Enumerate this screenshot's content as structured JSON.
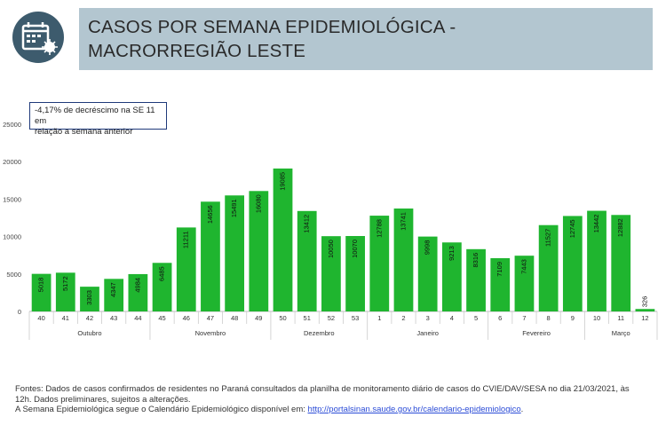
{
  "header": {
    "icon": "calendar-virus-icon",
    "title_line1": "CASOS POR SEMANA EPIDEMIOLÓGICA -",
    "title_line2": "MACRORREGIÃO LESTE",
    "accent_color": "#b3c6d0",
    "icon_color": "#3d5b6d"
  },
  "annotation": {
    "line1": "-4,17% de decréscimo na SE 11 em",
    "line2": "relação a semana anterior"
  },
  "chart_data": {
    "type": "bar",
    "bar_color": "#1fb52f",
    "categories": [
      "40",
      "41",
      "42",
      "43",
      "44",
      "45",
      "46",
      "47",
      "48",
      "49",
      "50",
      "51",
      "52",
      "53",
      "1",
      "2",
      "3",
      "4",
      "5",
      "6",
      "7",
      "8",
      "9",
      "10",
      "11",
      "12"
    ],
    "values": [
      5018,
      5172,
      3303,
      4347,
      4984,
      6485,
      11211,
      14656,
      15491,
      16080,
      19085,
      13412,
      10050,
      10070,
      12788,
      13741,
      9998,
      9213,
      8316,
      7109,
      7443,
      11527,
      12745,
      13442,
      12882,
      326
    ],
    "month_groups": [
      {
        "label": "Outubro",
        "start": 0,
        "end": 4
      },
      {
        "label": "Novembro",
        "start": 5,
        "end": 9
      },
      {
        "label": "Dezembro",
        "start": 10,
        "end": 13
      },
      {
        "label": "Janeiro",
        "start": 14,
        "end": 18
      },
      {
        "label": "Fevereiro",
        "start": 19,
        "end": 22
      },
      {
        "label": "Março",
        "start": 23,
        "end": 25
      }
    ],
    "yticks": [
      0,
      5000,
      10000,
      15000,
      20000,
      25000
    ],
    "ylim": [
      0,
      25000
    ],
    "grid": false
  },
  "footer": {
    "line1": "Fontes: Dados de casos confirmados de residentes no Paraná consultados da planilha de monitoramento diário de casos do CVIE/DAV/SESA no dia 21/03/2021, às",
    "line2": "12h. Dados preliminares, sujeitos a alterações.",
    "line3_prefix": "A Semana Epidemiológica segue o Calendário Epidemiológico disponível em: ",
    "link_text": "http://portalsinan.saude.gov.br/calendario-epidemiologico",
    "line3_suffix": "."
  }
}
